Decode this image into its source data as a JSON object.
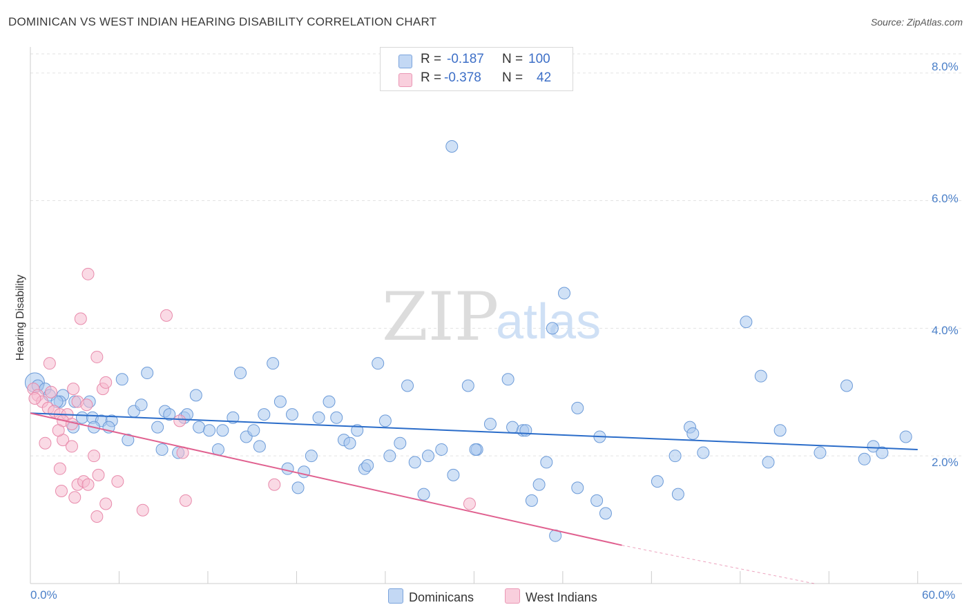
{
  "title": "DOMINICAN VS WEST INDIAN HEARING DISABILITY CORRELATION CHART",
  "source": "Source: ZipAtlas.com",
  "watermark": {
    "zip": "ZIP",
    "atlas": "atlas"
  },
  "colors": {
    "blue_fill": "#a9c8ef",
    "blue_stroke": "#6b9ad8",
    "blue_line": "#2a6cc9",
    "pink_fill": "#f6bcd0",
    "pink_stroke": "#e88aab",
    "pink_line": "#e0608f",
    "tick_text": "#4a7fc8"
  },
  "legend": {
    "rows": [
      {
        "r_label": "R =",
        "r_value": "-0.187",
        "n_label": "N =",
        "n_value": "100"
      },
      {
        "r_label": "R =",
        "r_value": "-0.378",
        "n_label": "N =",
        "n_value": "42"
      }
    ]
  },
  "bottom_legend": {
    "dominicans": "Dominicans",
    "west_indians": "West Indians"
  },
  "chart_data": {
    "type": "scatter",
    "title": "DOMINICAN VS WEST INDIAN HEARING DISABILITY CORRELATION CHART",
    "xlabel": "",
    "ylabel": "Hearing Disability",
    "xlim": [
      0,
      63
    ],
    "ylim": [
      0,
      8.3
    ],
    "x_tick_labels": {
      "left": "0.0%",
      "right": "60.0%"
    },
    "y_ticks": [
      {
        "value": 2,
        "label": "2.0%"
      },
      {
        "value": 4,
        "label": "4.0%"
      },
      {
        "value": 6,
        "label": "6.0%"
      },
      {
        "value": 8,
        "label": "8.0%"
      }
    ],
    "grid": true,
    "legend_position": "top-center",
    "series": [
      {
        "name": "Dominicans",
        "r": -0.187,
        "n": 100,
        "trend": {
          "x0": 0,
          "y0": 2.67,
          "x1": 60,
          "y1": 2.1
        },
        "points": [
          [
            0.3,
            3.15
          ],
          [
            0.5,
            3.1
          ],
          [
            1.0,
            3.05
          ],
          [
            2.2,
            2.95
          ],
          [
            3.0,
            2.85
          ],
          [
            4.0,
            2.85
          ],
          [
            1.3,
            2.95
          ],
          [
            2.0,
            2.85
          ],
          [
            3.5,
            2.6
          ],
          [
            4.2,
            2.6
          ],
          [
            4.8,
            2.55
          ],
          [
            5.5,
            2.55
          ],
          [
            2.9,
            2.45
          ],
          [
            5.3,
            2.45
          ],
          [
            6.2,
            3.2
          ],
          [
            7.9,
            3.3
          ],
          [
            7.0,
            2.7
          ],
          [
            7.5,
            2.8
          ],
          [
            9.1,
            2.7
          ],
          [
            9.4,
            2.65
          ],
          [
            8.6,
            2.45
          ],
          [
            10.4,
            2.6
          ],
          [
            10.6,
            2.65
          ],
          [
            11.2,
            2.95
          ],
          [
            11.4,
            2.45
          ],
          [
            12.1,
            2.4
          ],
          [
            12.7,
            2.1
          ],
          [
            13.0,
            2.4
          ],
          [
            13.7,
            2.6
          ],
          [
            14.2,
            3.3
          ],
          [
            14.6,
            2.3
          ],
          [
            15.1,
            2.4
          ],
          [
            15.5,
            2.15
          ],
          [
            15.8,
            2.65
          ],
          [
            16.4,
            3.45
          ],
          [
            16.9,
            2.85
          ],
          [
            17.4,
            1.8
          ],
          [
            17.7,
            2.65
          ],
          [
            18.1,
            1.5
          ],
          [
            18.5,
            1.75
          ],
          [
            19.5,
            2.6
          ],
          [
            20.2,
            2.85
          ],
          [
            20.7,
            2.6
          ],
          [
            21.2,
            2.25
          ],
          [
            21.6,
            2.2
          ],
          [
            22.1,
            2.4
          ],
          [
            22.6,
            1.8
          ],
          [
            22.8,
            1.85
          ],
          [
            23.5,
            3.45
          ],
          [
            24.3,
            2.0
          ],
          [
            25.0,
            2.2
          ],
          [
            25.5,
            3.1
          ],
          [
            26.0,
            1.9
          ],
          [
            26.6,
            1.4
          ],
          [
            26.9,
            2.0
          ],
          [
            27.8,
            2.1
          ],
          [
            28.6,
            1.7
          ],
          [
            29.6,
            3.1
          ],
          [
            30.2,
            2.1
          ],
          [
            31.1,
            2.5
          ],
          [
            32.3,
            3.2
          ],
          [
            32.6,
            2.45
          ],
          [
            30.1,
            2.1
          ],
          [
            33.3,
            2.4
          ],
          [
            28.5,
            6.85
          ],
          [
            33.9,
            1.3
          ],
          [
            34.4,
            1.55
          ],
          [
            34.9,
            1.9
          ],
          [
            35.5,
            0.75
          ],
          [
            35.3,
            4.0
          ],
          [
            36.1,
            4.55
          ],
          [
            37.0,
            1.5
          ],
          [
            37.0,
            2.75
          ],
          [
            38.3,
            1.3
          ],
          [
            38.5,
            2.3
          ],
          [
            38.9,
            1.1
          ],
          [
            42.4,
            1.6
          ],
          [
            43.6,
            2.0
          ],
          [
            43.8,
            1.4
          ],
          [
            44.6,
            2.45
          ],
          [
            44.8,
            2.35
          ],
          [
            45.5,
            2.05
          ],
          [
            48.4,
            4.1
          ],
          [
            49.4,
            3.25
          ],
          [
            49.9,
            1.9
          ],
          [
            50.7,
            2.4
          ],
          [
            53.4,
            2.05
          ],
          [
            55.2,
            3.1
          ],
          [
            57.0,
            2.15
          ],
          [
            57.6,
            2.05
          ],
          [
            56.4,
            1.95
          ],
          [
            59.2,
            2.3
          ],
          [
            1.8,
            2.85
          ],
          [
            4.3,
            2.45
          ],
          [
            6.6,
            2.25
          ],
          [
            8.9,
            2.1
          ],
          [
            10.0,
            2.05
          ],
          [
            19.0,
            2.0
          ],
          [
            24.0,
            2.55
          ],
          [
            33.5,
            2.4
          ]
        ]
      },
      {
        "name": "West Indians",
        "r": -0.378,
        "n": 42,
        "trend": {
          "x0": 0,
          "y0": 2.67,
          "x1": 40,
          "y1": 0.6,
          "dash_to_x": 53,
          "dash_to_y": 0.0
        },
        "points": [
          [
            0.2,
            3.05
          ],
          [
            0.5,
            2.95
          ],
          [
            0.8,
            2.85
          ],
          [
            1.2,
            2.75
          ],
          [
            1.6,
            2.7
          ],
          [
            2.0,
            2.65
          ],
          [
            1.4,
            3.0
          ],
          [
            0.3,
            2.9
          ],
          [
            1.3,
            3.45
          ],
          [
            2.9,
            3.05
          ],
          [
            3.2,
            2.85
          ],
          [
            3.8,
            2.8
          ],
          [
            2.5,
            2.65
          ],
          [
            2.2,
            2.55
          ],
          [
            2.8,
            2.5
          ],
          [
            1.0,
            2.2
          ],
          [
            2.2,
            2.25
          ],
          [
            2.8,
            2.15
          ],
          [
            1.9,
            2.4
          ],
          [
            3.4,
            4.15
          ],
          [
            3.9,
            4.85
          ],
          [
            4.5,
            3.55
          ],
          [
            4.9,
            3.05
          ],
          [
            5.1,
            3.15
          ],
          [
            4.3,
            2.0
          ],
          [
            2.0,
            1.8
          ],
          [
            3.2,
            1.55
          ],
          [
            3.6,
            1.6
          ],
          [
            3.9,
            1.55
          ],
          [
            4.6,
            1.7
          ],
          [
            5.9,
            1.6
          ],
          [
            2.1,
            1.45
          ],
          [
            3.0,
            1.35
          ],
          [
            4.5,
            1.05
          ],
          [
            5.1,
            1.25
          ],
          [
            7.6,
            1.15
          ],
          [
            9.2,
            4.2
          ],
          [
            10.1,
            2.55
          ],
          [
            10.3,
            2.05
          ],
          [
            10.5,
            1.3
          ],
          [
            16.5,
            1.55
          ],
          [
            29.7,
            1.25
          ]
        ]
      }
    ]
  }
}
